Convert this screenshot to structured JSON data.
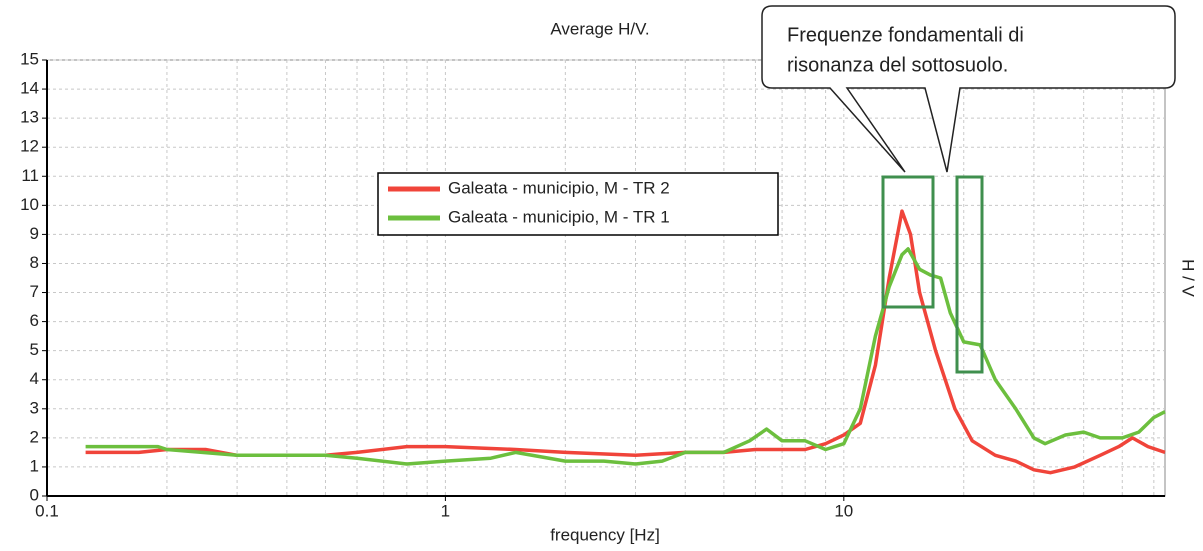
{
  "chart_data": {
    "type": "line",
    "title": "Average H/V.",
    "xlabel": "frequency [Hz]",
    "ylabel": "H / V",
    "xscale": "log",
    "xlim": [
      0.1,
      64
    ],
    "xticks": [
      0.1,
      1,
      10
    ],
    "ylim": [
      0,
      15
    ],
    "yticks": [
      0,
      1,
      2,
      3,
      4,
      5,
      6,
      7,
      8,
      9,
      10,
      11,
      12,
      13,
      14,
      15
    ],
    "grid": true,
    "minor_grid": true,
    "legend": "center",
    "annotation": [
      "Frequenze fondamentali di",
      "risonanza del sottosuolo."
    ],
    "series": [
      {
        "name": "Galeata - municipio, M -  TR 2",
        "color": "#f0443a",
        "x": [
          0.125,
          0.17,
          0.2,
          0.25,
          0.3,
          0.5,
          0.6,
          0.8,
          1,
          1.5,
          2,
          3,
          4,
          5,
          6,
          8,
          9,
          10,
          11,
          12,
          13,
          14,
          14.7,
          15.5,
          17,
          19,
          21,
          24,
          27,
          30,
          33,
          38,
          44,
          49,
          53,
          58,
          64
        ],
        "values": [
          1.5,
          1.5,
          1.6,
          1.6,
          1.4,
          1.4,
          1.5,
          1.7,
          1.7,
          1.6,
          1.5,
          1.4,
          1.5,
          1.5,
          1.6,
          1.6,
          1.8,
          2.1,
          2.5,
          4.5,
          7.5,
          9.8,
          9,
          7,
          5,
          3,
          1.9,
          1.4,
          1.2,
          0.9,
          0.8,
          1,
          1.4,
          1.7,
          2,
          1.7,
          1.5
        ]
      },
      {
        "name": "Galeata - municipio, M - TR 1",
        "color": "#6cbf3e",
        "x": [
          0.125,
          0.19,
          0.2,
          0.3,
          0.5,
          0.6,
          0.8,
          1,
          1.3,
          1.5,
          2,
          2.5,
          3,
          3.5,
          4,
          5,
          5.8,
          6.4,
          7,
          8,
          9,
          10,
          11,
          12,
          13,
          14,
          14.5,
          15.5,
          16.5,
          17.5,
          18.5,
          20,
          22,
          24,
          27,
          30,
          32,
          36,
          40,
          44,
          50,
          55,
          60,
          64
        ],
        "values": [
          1.7,
          1.7,
          1.6,
          1.4,
          1.4,
          1.3,
          1.1,
          1.2,
          1.3,
          1.5,
          1.2,
          1.2,
          1.1,
          1.2,
          1.5,
          1.5,
          1.9,
          2.3,
          1.9,
          1.9,
          1.6,
          1.8,
          3,
          5.5,
          7.2,
          8.3,
          8.5,
          7.8,
          7.6,
          7.5,
          6.3,
          5.3,
          5.2,
          4,
          3,
          2,
          1.8,
          2.1,
          2.2,
          2,
          2,
          2.2,
          2.7,
          2.9
        ]
      }
    ]
  }
}
